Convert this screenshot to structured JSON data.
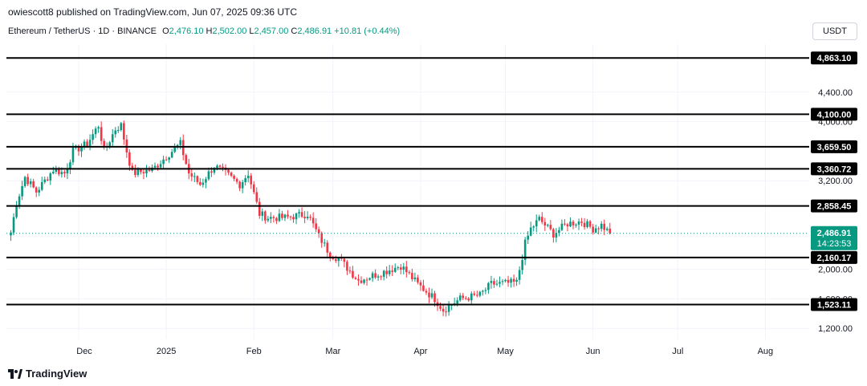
{
  "header": {
    "publisher": "owiescott8 published on TradingView.com, Jun 07, 2025 09:36 UTC"
  },
  "legend": {
    "symbol": "Ethereum / TetherUS · 1D · BINANCE",
    "o_label": "O",
    "o_value": "2,476.10",
    "h_label": "H",
    "h_value": "2,502.00",
    "l_label": "L",
    "l_value": "2,457.00",
    "c_label": "C",
    "c_value": "2,486.91",
    "change": "+10.81 (+0.44%)"
  },
  "currency_button": "USDT",
  "footer": {
    "brand": "TradingView",
    "logo_icon": "tradingview-logo-icon"
  },
  "colors": {
    "up": "#089981",
    "down": "#f23645",
    "level_line": "#000000",
    "grid": "#f0f3fa",
    "price_badge": "#089981"
  },
  "chart_data": {
    "type": "candlestick",
    "symbol": "ETHUSDT",
    "interval": "1D",
    "y_axis_ticks": [
      "4,400.00",
      "4,000.00",
      "3,200.00",
      "2,000.00",
      "1,600.00",
      "1,200.00"
    ],
    "x_axis_labels": [
      "Dec",
      "2025",
      "Feb",
      "Mar",
      "Apr",
      "May",
      "Jun",
      "Jul",
      "Aug"
    ],
    "ylim": [
      1050,
      5050
    ],
    "horizontal_levels": [
      {
        "value": 4863.1,
        "label": "4,863.10"
      },
      {
        "value": 4100.0,
        "label": "4,100.00"
      },
      {
        "value": 3659.5,
        "label": "3,659.50"
      },
      {
        "value": 3360.72,
        "label": "3,360.72"
      },
      {
        "value": 2858.45,
        "label": "2,858.45"
      },
      {
        "value": 2160.17,
        "label": "2,160.17"
      },
      {
        "value": 1523.11,
        "label": "1,523.11"
      }
    ],
    "last_price": {
      "value": 2486.91,
      "label": "2,486.91",
      "countdown": "14:23:53"
    },
    "price_path": [
      [
        "2024-11-07",
        2500
      ],
      [
        "2024-11-09",
        2900
      ],
      [
        "2024-11-12",
        3250
      ],
      [
        "2024-11-16",
        3050
      ],
      [
        "2024-11-22",
        3350
      ],
      [
        "2024-11-26",
        3300
      ],
      [
        "2024-11-29",
        3600
      ],
      [
        "2024-12-04",
        3700
      ],
      [
        "2024-12-08",
        3950
      ],
      [
        "2024-12-10",
        3600
      ],
      [
        "2024-12-14",
        3900
      ],
      [
        "2024-12-16",
        3950
      ],
      [
        "2024-12-18",
        3600
      ],
      [
        "2024-12-20",
        3300
      ],
      [
        "2024-12-27",
        3350
      ],
      [
        "2025-01-03",
        3600
      ],
      [
        "2025-01-06",
        3700
      ],
      [
        "2025-01-09",
        3300
      ],
      [
        "2025-01-13",
        3150
      ],
      [
        "2025-01-18",
        3400
      ],
      [
        "2025-01-22",
        3300
      ],
      [
        "2025-01-27",
        3150
      ],
      [
        "2025-01-30",
        3300
      ],
      [
        "2025-02-03",
        2750
      ],
      [
        "2025-02-06",
        2700
      ],
      [
        "2025-02-12",
        2700
      ],
      [
        "2025-02-20",
        2750
      ],
      [
        "2025-02-24",
        2450
      ],
      [
        "2025-02-28",
        2200
      ],
      [
        "2025-03-03",
        2150
      ],
      [
        "2025-03-10",
        1850
      ],
      [
        "2025-03-20",
        1980
      ],
      [
        "2025-03-25",
        2050
      ],
      [
        "2025-03-31",
        1800
      ],
      [
        "2025-04-06",
        1600
      ],
      [
        "2025-04-09",
        1450
      ],
      [
        "2025-04-15",
        1600
      ],
      [
        "2025-04-22",
        1650
      ],
      [
        "2025-04-26",
        1800
      ],
      [
        "2025-05-05",
        1820
      ],
      [
        "2025-05-08",
        2350
      ],
      [
        "2025-05-10",
        2550
      ],
      [
        "2025-05-13",
        2680
      ],
      [
        "2025-05-18",
        2480
      ],
      [
        "2025-05-23",
        2620
      ],
      [
        "2025-05-28",
        2650
      ],
      [
        "2025-06-01",
        2550
      ],
      [
        "2025-06-04",
        2600
      ],
      [
        "2025-06-07",
        2487
      ]
    ]
  }
}
